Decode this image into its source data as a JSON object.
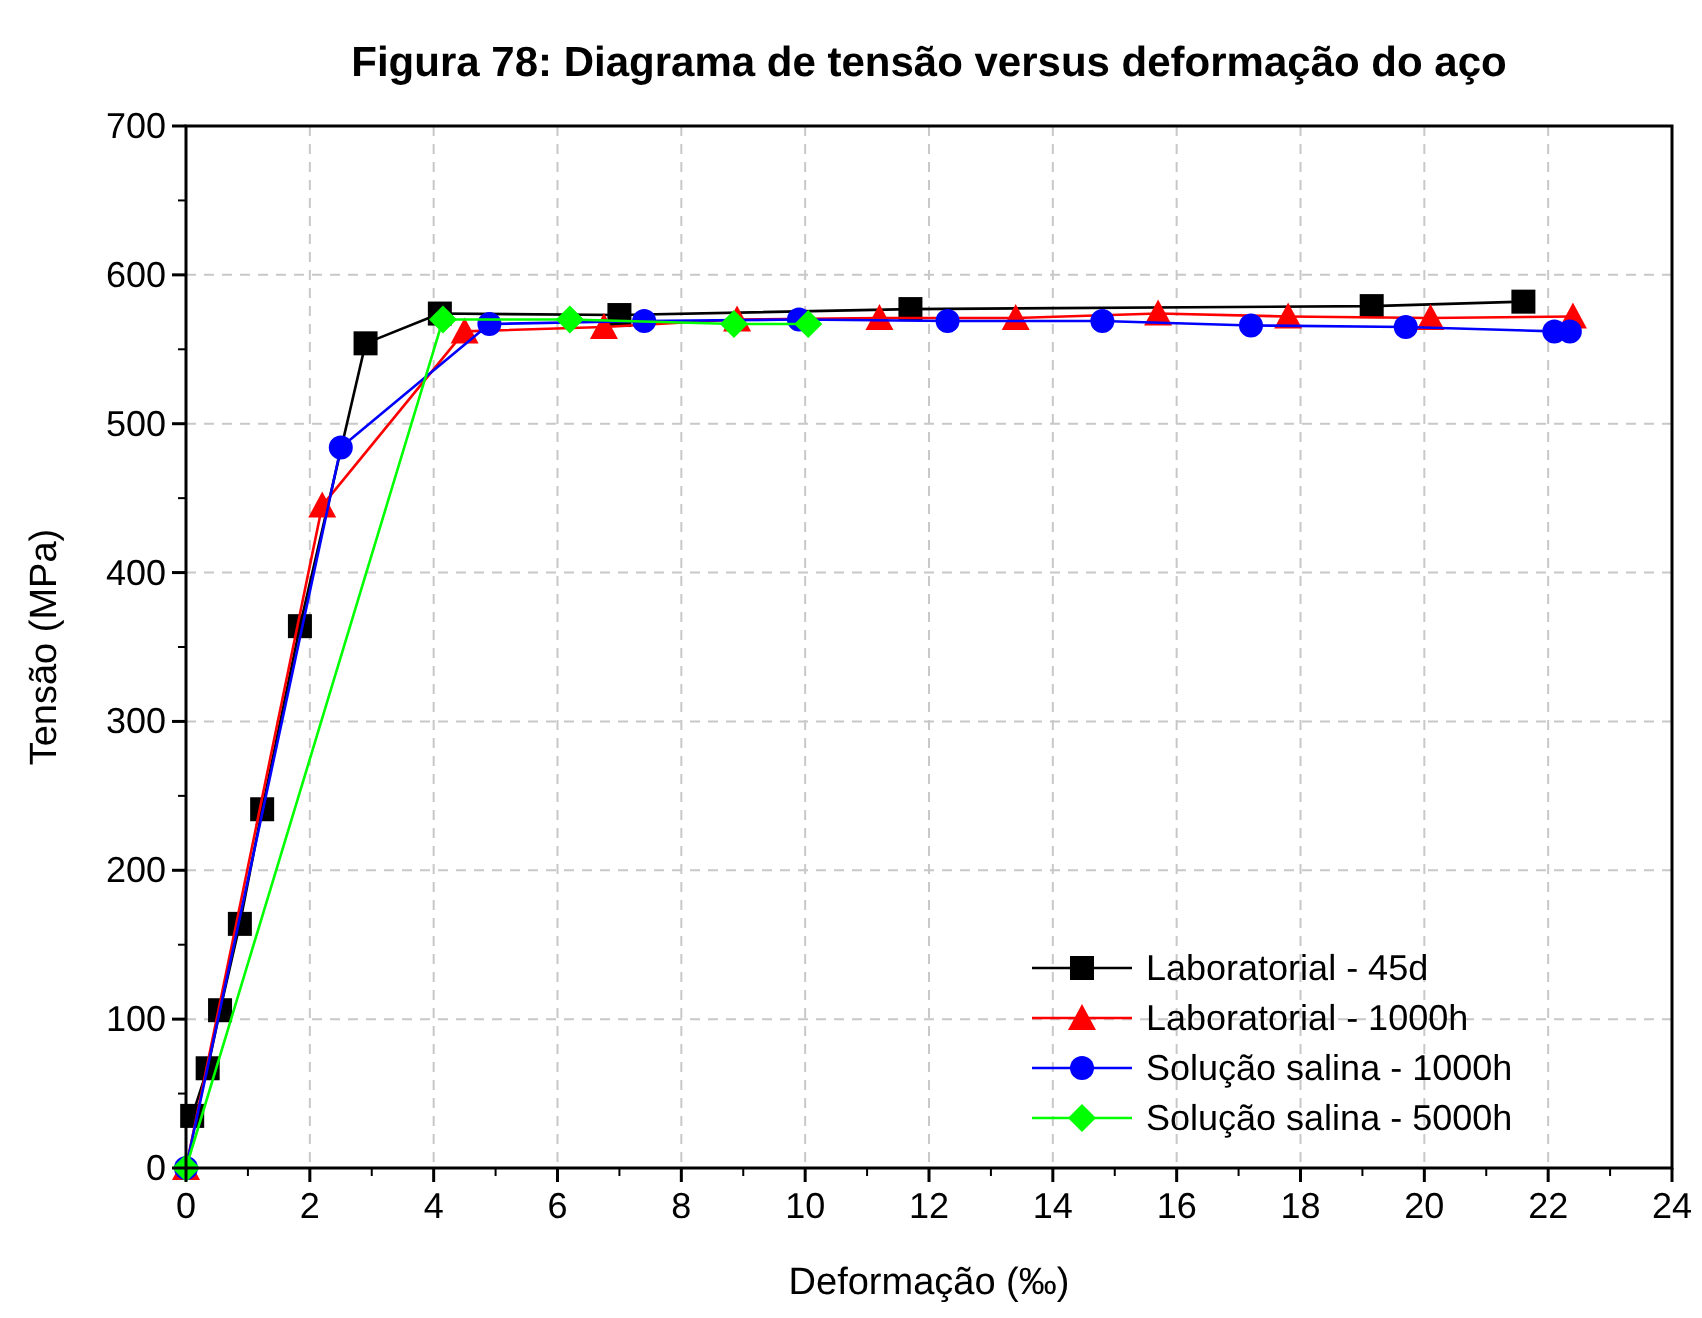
{
  "chart_data": {
    "type": "line",
    "title": "Figura 78: Diagrama de tensão versus deformação do aço",
    "xlabel": "Deformação (‰)",
    "ylabel": "Tensão (MPa)",
    "xlim": [
      0,
      24
    ],
    "ylim": [
      0,
      700
    ],
    "xticks": [
      0,
      2,
      4,
      6,
      8,
      10,
      12,
      14,
      16,
      18,
      20,
      22,
      24
    ],
    "yticks": [
      0,
      100,
      200,
      300,
      400,
      500,
      600,
      700
    ],
    "grid": true,
    "legend": "bottom right",
    "line_style": "solid",
    "series": [
      {
        "name": "Laboratorial - 45d",
        "color": "#000000",
        "marker": "square",
        "x": [
          0.1,
          0.35,
          0.55,
          0.87,
          1.23,
          1.84,
          2.9,
          4.1,
          7.0,
          11.7,
          19.15,
          21.6
        ],
        "values": [
          35,
          67,
          106,
          164,
          241,
          364,
          554,
          574,
          573,
          577,
          579,
          582
        ]
      },
      {
        "name": "Laboratorial - 1000h",
        "color": "#ff0000",
        "marker": "triangle",
        "x": [
          0,
          2.2,
          4.5,
          6.75,
          8.9,
          11.2,
          13.4,
          15.7,
          17.8,
          20.1,
          22.4
        ],
        "values": [
          0,
          445,
          562,
          565,
          570,
          571,
          571,
          574,
          572,
          571,
          572
        ]
      },
      {
        "name": "Solução salina - 1000h",
        "color": "#0000ff",
        "marker": "circle",
        "x": [
          0,
          2.5,
          4.9,
          7.4,
          9.9,
          12.3,
          14.8,
          17.2,
          19.7,
          22.1,
          22.35
        ],
        "values": [
          0,
          484,
          567,
          569,
          570,
          569,
          569,
          566,
          565,
          562,
          562
        ]
      },
      {
        "name": "Solução salina - 5000h",
        "color": "#00ff00",
        "marker": "diamond",
        "x": [
          0,
          4.15,
          6.2,
          8.85,
          10.05
        ],
        "values": [
          0,
          570,
          570,
          567,
          567
        ]
      }
    ]
  }
}
